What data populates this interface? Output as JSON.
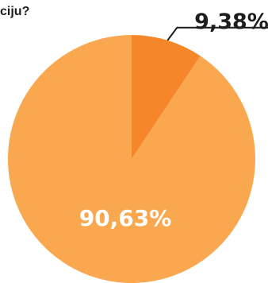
{
  "question_text": "ciju?",
  "colors": {
    "background": "#ffffff",
    "text": "#1e1e1e",
    "slice_small": "#f5862a",
    "slice_large": "#f9a84f",
    "inner_label": "#ffffff"
  },
  "chart_data": {
    "type": "pie",
    "title": "",
    "slices": [
      {
        "label": "9,38%",
        "value": 9.38,
        "color": "#f5862a"
      },
      {
        "label": "90,63%",
        "value": 90.63,
        "color": "#f9a84f"
      }
    ],
    "start_angle_deg": 0,
    "direction": "clockwise",
    "legend": "none"
  }
}
